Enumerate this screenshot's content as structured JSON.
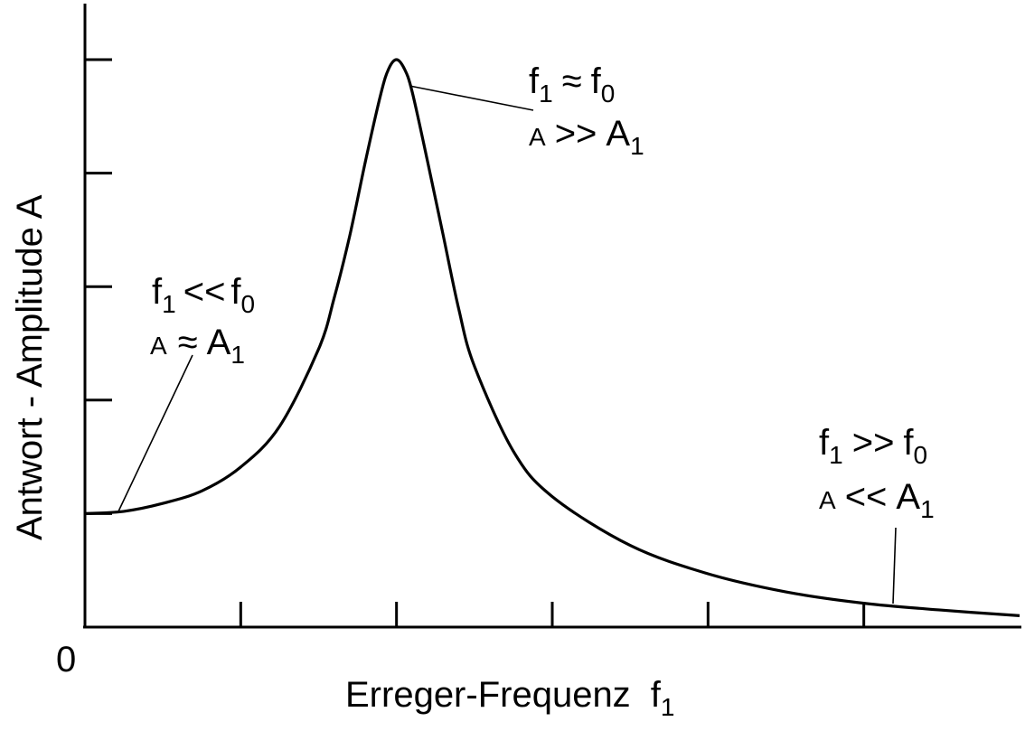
{
  "chart_data": {
    "type": "line",
    "title": "",
    "xlabel": "Erreger-Frequenz",
    "xlabel_var": "f",
    "xlabel_sub": "1",
    "ylabel": "Antwort - Amplitude  A",
    "origin_label": "0",
    "xlim": [
      0,
      6
    ],
    "ylim": [
      0,
      5
    ],
    "x_ticks": [
      1,
      2,
      3,
      4,
      5
    ],
    "y_ticks": [
      1,
      2,
      3,
      4,
      5
    ],
    "grid": false,
    "series": [
      {
        "x": [
          0,
          0.25,
          0.5,
          0.75,
          1.0,
          1.25,
          1.5,
          1.6,
          1.7,
          1.8,
          1.9,
          1.95,
          2.0,
          2.05,
          2.1,
          2.2,
          2.3,
          2.4,
          2.5,
          2.75,
          3.0,
          3.5,
          4.0,
          4.5,
          5.0,
          5.5,
          6.0
        ],
        "y": [
          1.0,
          1.02,
          1.09,
          1.2,
          1.41,
          1.77,
          2.45,
          2.9,
          3.45,
          4.1,
          4.7,
          4.92,
          5.0,
          4.92,
          4.72,
          4.1,
          3.45,
          2.8,
          2.3,
          1.55,
          1.15,
          0.72,
          0.47,
          0.31,
          0.21,
          0.15,
          0.1
        ]
      }
    ],
    "annotations": [
      {
        "line1": {
          "var": "f",
          "sub": "1",
          "op": "<<",
          "var2": "f",
          "sub2": "0"
        },
        "line2": {
          "var": "A",
          "op": "≈",
          "var2": "A",
          "sub2": "1"
        },
        "points_to": [
          0.2,
          1.0
        ]
      },
      {
        "line1": {
          "var": "f",
          "sub": "1",
          "op": "≈",
          "var2": "f",
          "sub2": "0"
        },
        "line2": {
          "var": "A",
          "op": ">>",
          "var2": "A",
          "sub2": "1"
        },
        "points_to": [
          2.1,
          4.75
        ]
      },
      {
        "line1": {
          "var": "f",
          "sub": "1",
          "op": ">>",
          "var2": "f",
          "sub2": "0"
        },
        "line2": {
          "var": "A",
          "op": "<<",
          "var2": "A",
          "sub2": "1"
        },
        "points_to": [
          5.2,
          0.2
        ]
      }
    ]
  }
}
